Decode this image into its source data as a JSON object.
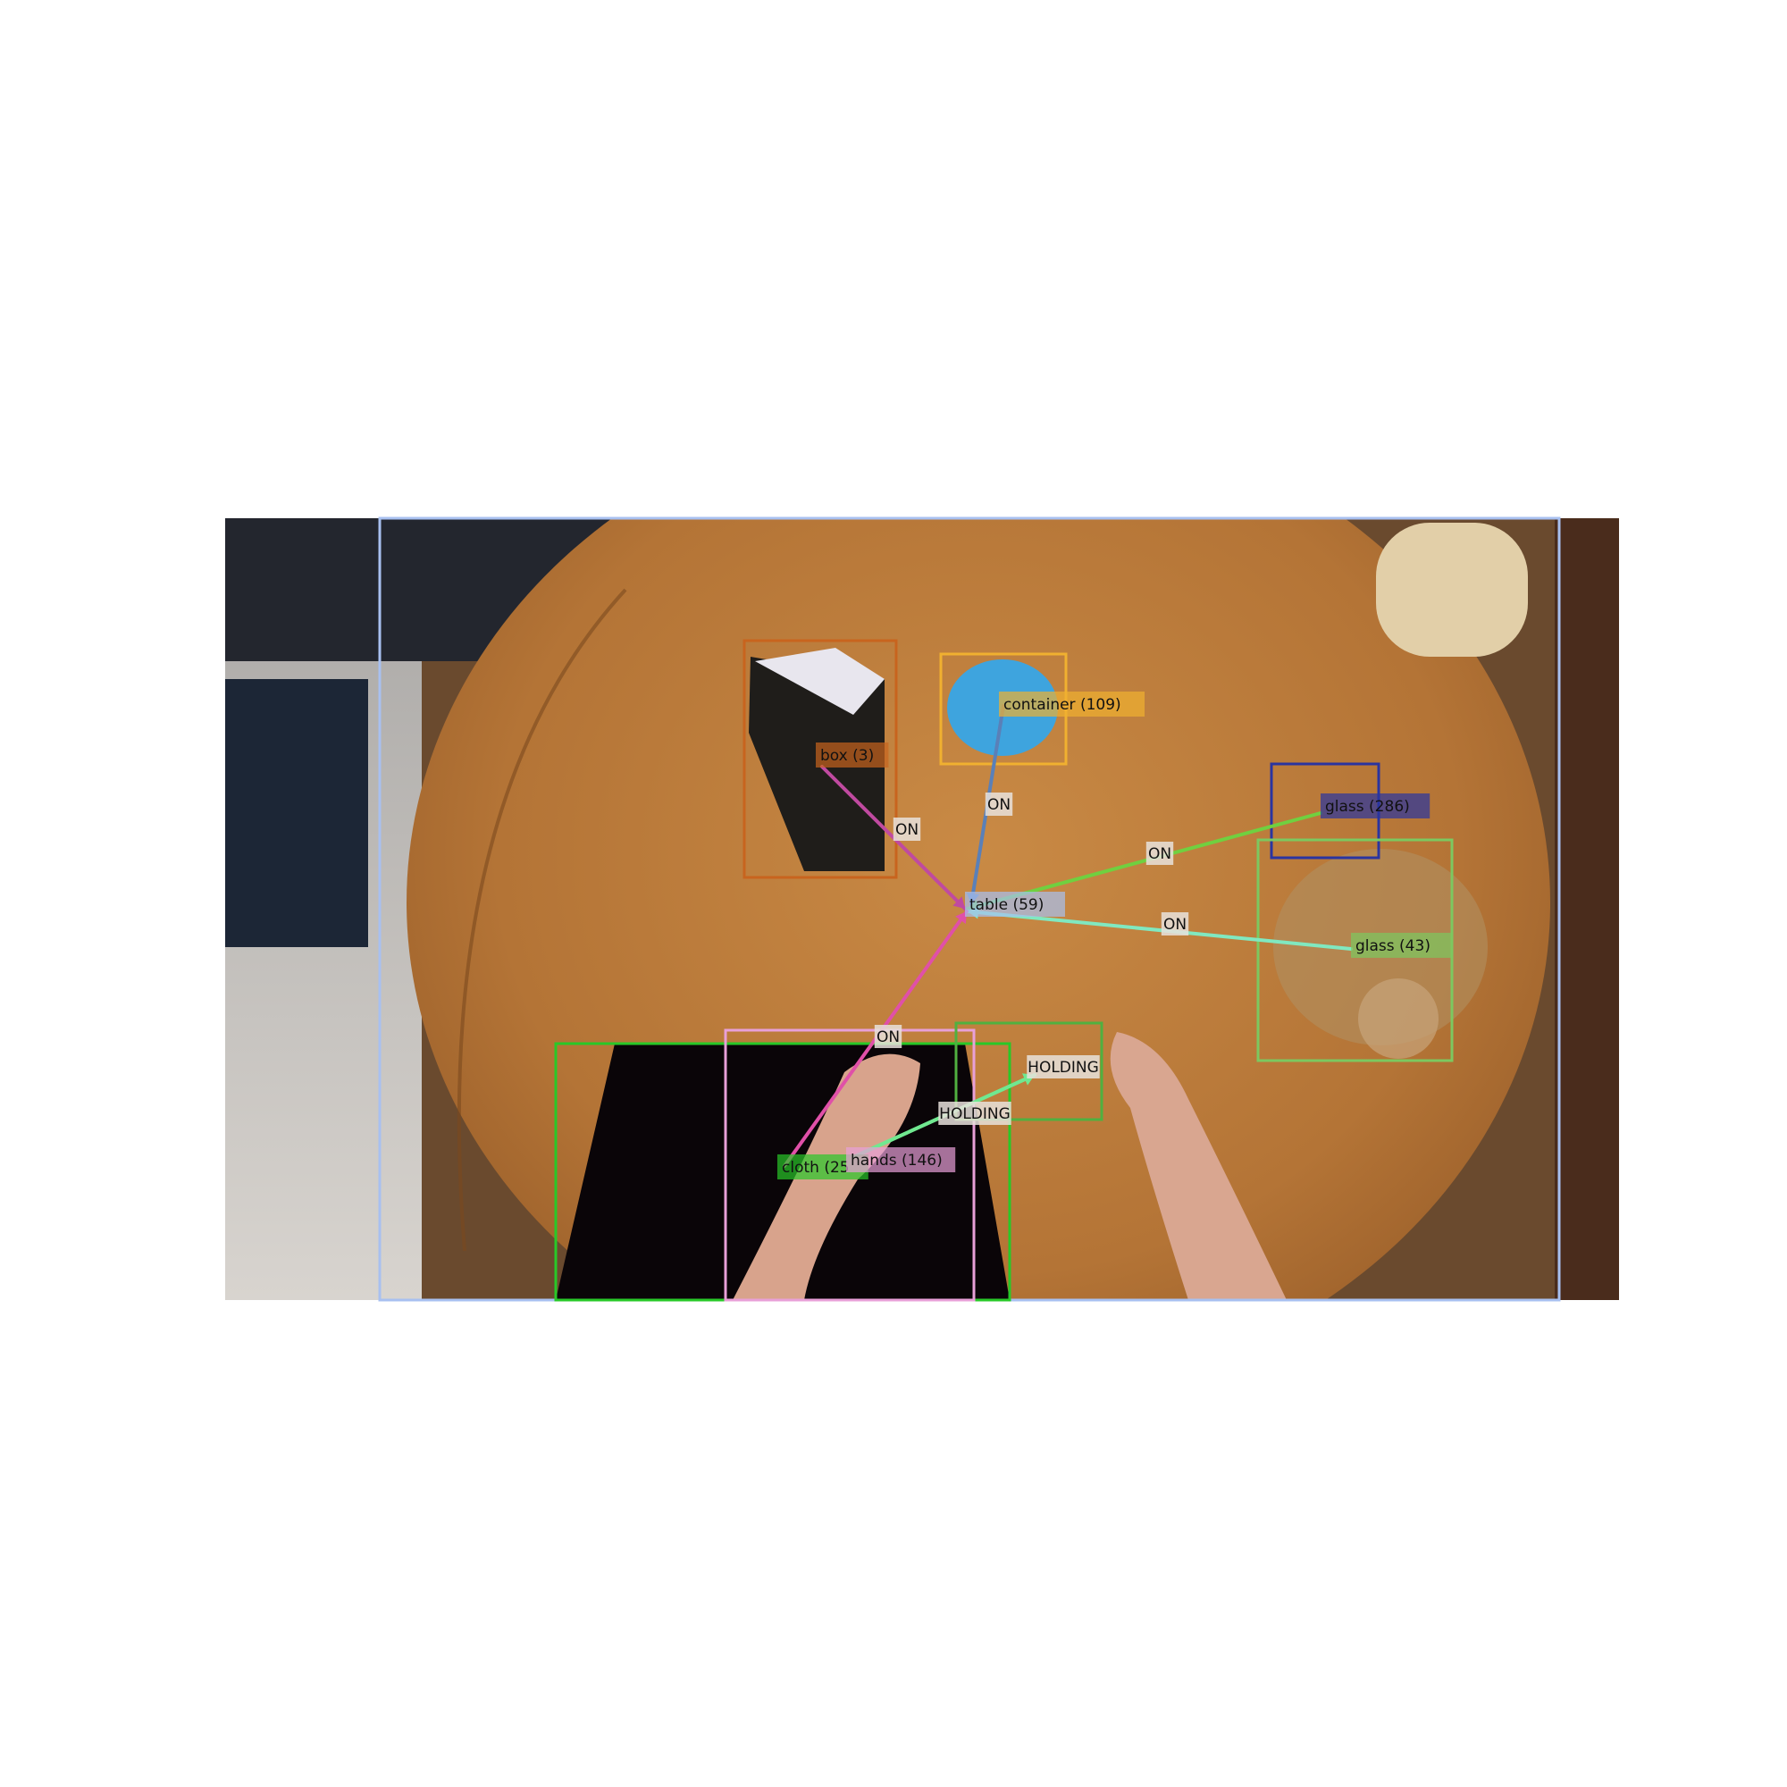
{
  "objects": [
    {
      "id": "table",
      "label": "table (59)",
      "color": "#a8c0f0"
    },
    {
      "id": "box",
      "label": "box (3)",
      "color": "#c8641e"
    },
    {
      "id": "container",
      "label": "container (109)",
      "color": "#f0b030"
    },
    {
      "id": "glass286",
      "label": "glass (286)",
      "color": "#2a34a0"
    },
    {
      "id": "glass43",
      "label": "glass (43)",
      "color": "#7cc860"
    },
    {
      "id": "cloth",
      "label": "cloth (25",
      "color": "#28c828"
    },
    {
      "id": "hands",
      "label": "hands (146)",
      "color": "#e8a0d8"
    },
    {
      "id": "held",
      "label": "",
      "color": "#50b040"
    }
  ],
  "relations": [
    {
      "id": "box-on-table",
      "label": "ON",
      "color": "#c04aa0"
    },
    {
      "id": "container-on-table",
      "label": "ON",
      "color": "#5a80b8"
    },
    {
      "id": "glass286-on-table",
      "label": "ON",
      "color": "#70d040"
    },
    {
      "id": "glass43-on-table",
      "label": "ON",
      "color": "#80e8c0"
    },
    {
      "id": "cloth-on-table",
      "label": "ON",
      "color": "#e050a8"
    },
    {
      "id": "hands-holding-1",
      "label": "HOLDING",
      "color": "#70e890"
    },
    {
      "id": "hands-holding-2",
      "label": "HOLDING",
      "color": "#70e890"
    }
  ]
}
